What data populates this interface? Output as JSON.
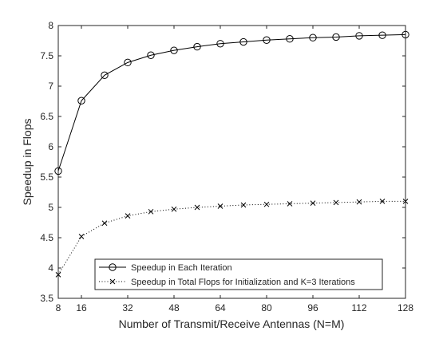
{
  "chart_data": {
    "type": "line",
    "title": "",
    "xlabel": "Number of Transmit/Receive Antennas (N=M)",
    "ylabel": "Speedup in Flops",
    "xlim": [
      8,
      128
    ],
    "ylim": [
      3.5,
      8
    ],
    "xticks": [
      8,
      16,
      32,
      48,
      64,
      80,
      96,
      112,
      128
    ],
    "yticks": [
      3.5,
      4,
      4.5,
      5,
      5.5,
      6,
      6.5,
      7,
      7.5,
      8
    ],
    "grid": false,
    "legend_position": "bottom-center",
    "x": [
      8,
      16,
      24,
      32,
      40,
      48,
      56,
      64,
      72,
      80,
      88,
      96,
      104,
      112,
      120,
      128
    ],
    "series": [
      {
        "name": "Speedup in Each Iteration",
        "marker": "circle",
        "line_style": "solid",
        "color": "#000000",
        "values": [
          5.6,
          6.76,
          7.18,
          7.39,
          7.51,
          7.59,
          7.65,
          7.7,
          7.73,
          7.76,
          7.78,
          7.8,
          7.81,
          7.83,
          7.84,
          7.85
        ]
      },
      {
        "name": "Speedup in Total Flops for Initialization and K=3 Iterations",
        "marker": "x",
        "line_style": "dotted",
        "color": "#000000",
        "values": [
          3.89,
          4.52,
          4.74,
          4.86,
          4.93,
          4.97,
          5.0,
          5.02,
          5.04,
          5.05,
          5.06,
          5.07,
          5.08,
          5.09,
          5.1,
          5.1
        ]
      }
    ]
  }
}
